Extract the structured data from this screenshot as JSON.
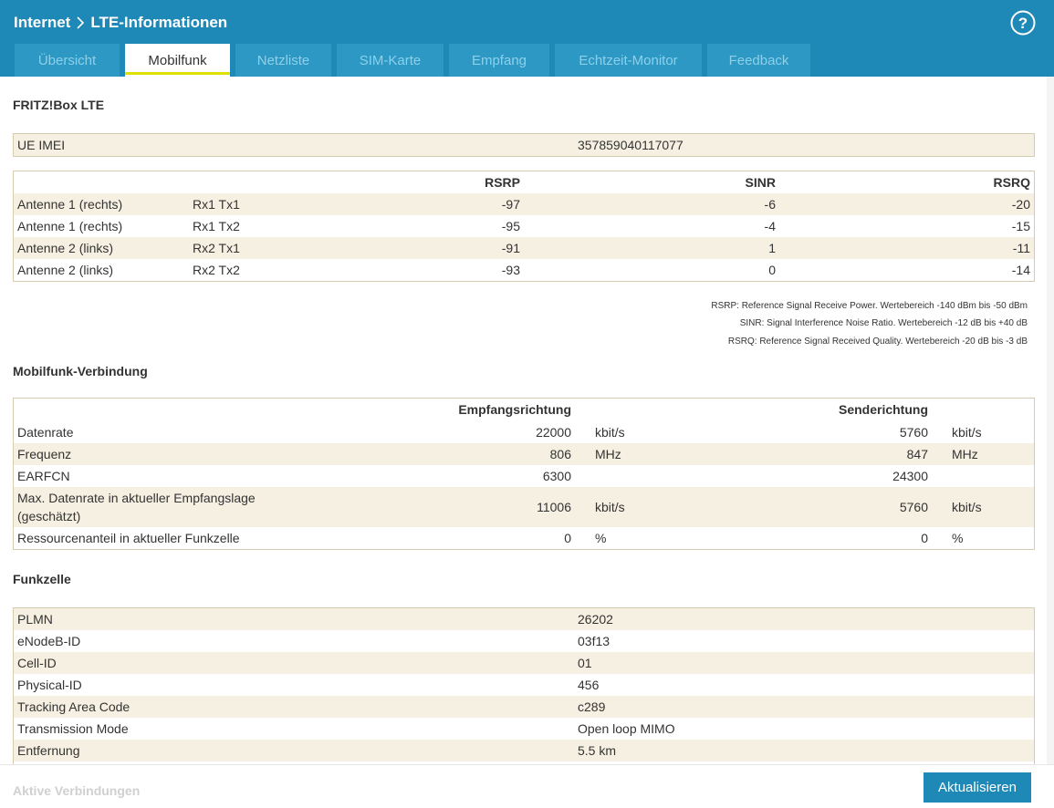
{
  "breadcrumb": {
    "root": "Internet",
    "current": "LTE-Informationen"
  },
  "tabs": [
    {
      "label": "Übersicht"
    },
    {
      "label": "Mobilfunk"
    },
    {
      "label": "Netzliste"
    },
    {
      "label": "SIM-Karte"
    },
    {
      "label": "Empfang"
    },
    {
      "label": "Echtzeit-Monitor"
    },
    {
      "label": "Feedback"
    }
  ],
  "active_tab": "Mobilfunk",
  "device": {
    "title": "FRITZ!Box LTE",
    "imei_label": "UE IMEI",
    "imei_value": "357859040117077"
  },
  "antennas": {
    "headers": {
      "rsrp": "RSRP",
      "sinr": "SINR",
      "rsrq": "RSRQ"
    },
    "rows": [
      {
        "antenna": "Antenne 1 (rechts)",
        "path": "Rx1 Tx1",
        "rsrp": "-97",
        "sinr": "-6",
        "rsrq": "-20"
      },
      {
        "antenna": "Antenne 1 (rechts)",
        "path": "Rx1 Tx2",
        "rsrp": "-95",
        "sinr": "-4",
        "rsrq": "-15"
      },
      {
        "antenna": "Antenne 2 (links)",
        "path": "Rx2 Tx1",
        "rsrp": "-91",
        "sinr": "1",
        "rsrq": "-11"
      },
      {
        "antenna": "Antenne 2 (links)",
        "path": "Rx2 Tx2",
        "rsrp": "-93",
        "sinr": "0",
        "rsrq": "-14"
      }
    ],
    "legend": [
      "RSRP: Reference Signal Receive Power. Wertebereich -140 dBm bis -50 dBm",
      "SINR: Signal Interference Noise Ratio. Wertebereich -12 dB bis +40 dB",
      "RSRQ: Reference Signal Received Quality. Wertebereich -20 dB bis -3 dB"
    ]
  },
  "connection": {
    "title": "Mobilfunk-Verbindung",
    "headers": {
      "down": "Empfangsrichtung",
      "up": "Senderichtung"
    },
    "rows": [
      {
        "label": "Datenrate",
        "down": "22000",
        "down_unit": "kbit/s",
        "up": "5760",
        "up_unit": "kbit/s"
      },
      {
        "label": "Frequenz",
        "down": "806",
        "down_unit": "MHz",
        "up": "847",
        "up_unit": "MHz"
      },
      {
        "label": "EARFCN",
        "down": "6300",
        "down_unit": "",
        "up": "24300",
        "up_unit": ""
      },
      {
        "label_line1": "Max. Datenrate in aktueller Empfangslage",
        "label_line2": "(geschätzt)",
        "down": "11006",
        "down_unit": "kbit/s",
        "up": "5760",
        "up_unit": "kbit/s"
      },
      {
        "label": "Ressourcenanteil in aktueller Funkzelle",
        "down": "0",
        "down_unit": "%",
        "up": "0",
        "up_unit": "%"
      }
    ]
  },
  "cell": {
    "title": "Funkzelle",
    "rows": [
      {
        "label": "PLMN",
        "value": "26202"
      },
      {
        "label": "eNodeB-ID",
        "value": "03f13"
      },
      {
        "label": "Cell-ID",
        "value": "01"
      },
      {
        "label": "Physical-ID",
        "value": "456"
      },
      {
        "label": "Tracking Area Code",
        "value": "c289"
      },
      {
        "label": "Transmission Mode",
        "value": "Open loop MIMO"
      },
      {
        "label": "Entfernung",
        "value": "5.5 km"
      }
    ]
  },
  "footer": {
    "next_section": "Aktive Verbindungen",
    "refresh_label": "Aktualisieren"
  },
  "colors": {
    "brand": "#1e88b6",
    "row_stripe": "#f6f0e2",
    "table_border": "#d4cbb0",
    "active_tab_underline": "#e0e000"
  }
}
